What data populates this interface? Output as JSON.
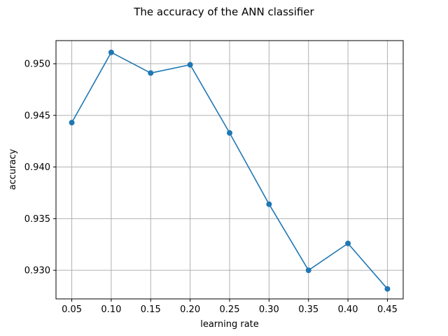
{
  "chart_data": {
    "type": "line",
    "title": "The accuracy of the ANN classifier",
    "xlabel": "learning rate",
    "ylabel": "accuracy",
    "x": [
      0.05,
      0.1,
      0.15,
      0.2,
      0.25,
      0.3,
      0.35,
      0.4,
      0.45
    ],
    "x_tick_labels": [
      "0.05",
      "0.10",
      "0.15",
      "0.20",
      "0.25",
      "0.30",
      "0.35",
      "0.40",
      "0.45"
    ],
    "y_ticks": [
      0.93,
      0.935,
      0.94,
      0.945,
      0.95
    ],
    "y_tick_labels": [
      "0.930",
      "0.935",
      "0.940",
      "0.945",
      "0.950"
    ],
    "series": [
      {
        "values": [
          0.9443,
          0.9511,
          0.9491,
          0.9499,
          0.9433,
          0.9364,
          0.93,
          0.9326,
          0.9282
        ],
        "color": "#1f77b4",
        "marker": "circle"
      }
    ],
    "xlim": [
      0.03,
      0.47
    ],
    "ylim": [
      0.92723,
      0.95224
    ],
    "grid": true
  }
}
